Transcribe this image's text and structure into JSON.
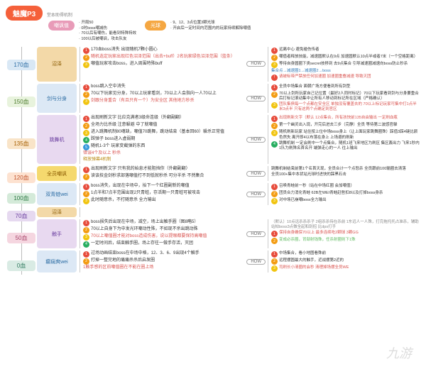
{
  "title": "魅魔P3",
  "subnote": "堂本助得机制",
  "colors": {
    "title": "#f5603a",
    "pink": "#e89bb8",
    "orange": "#f5a742",
    "num_red": "#e74c3c",
    "num_orange": "#f39c12",
    "num_yellow": "#f1c40f",
    "num_green": "#27ae60",
    "num_blue": "#3498db",
    "txt_red": "#d9534f",
    "txt_green": "#5cb85c",
    "txt_blue": "#337ab7"
  },
  "top_groups": [
    {
      "label": "嘲讽值",
      "color": "#e89bb8",
      "items": [
        "开局50",
        "0时boss嘲减伤",
        "70以后有嘲伤，能看到特殊特效",
        "100以后被嘲讽，攻击队友"
      ]
    },
    {
      "label": "光球",
      "color": "#f5a742",
      "items": [
        "9、12、3点位置3颗光球",
        "开启后一定时间内范围内的玩家持续解除嘲值"
      ]
    }
  ],
  "stages": [
    {
      "hp": "170血",
      "hp_bg": "#d9e8f5",
      "hp_fg": "#2b6ca3",
      "phase": "沼泽",
      "ph_bg": "#f3d9a8",
      "ph_fg": "#8a5a00",
      "mid": [
        {
          "n": "1",
          "c": "#e74c3c",
          "t": "170血boss消失 出现随机7颗小圆心"
        },
        {
          "n": "2",
          "c": "#f39c12",
          "t": "随机选定玩家出现红色沼泽范围（出去+buff）2名玩家绿色沼泽范围（蓝条）",
          "color": "#d9534f"
        },
        {
          "n": "3",
          "c": "#f1c40f",
          "t": "嘲值玩家攻击boss，进入周围特殊buff"
        }
      ],
      "right": [
        {
          "n": "1",
          "c": "#e74c3c",
          "t": "远离中心 避免碰伤传者"
        },
        {
          "n": "2",
          "c": "#f39c12",
          "t": "嘲值者释放技能，减速圆默认在9点 加速圆默认10点半或者7米（一个空格距离）"
        },
        {
          "n": "3",
          "c": "#f1c40f",
          "t": "等待自身圆圈下类secret技移到 去9点集合 引导减速圈减速向boss防止秒杀"
        },
        {
          "n": "",
          "c": "",
          "t": "集合点→减速圈1→减速圈2→boss",
          "color": "#337ab7"
        },
        {
          "n": "!",
          "c": "#e74c3c",
          "t": "请被标带严禁放任何加速圈 加速圈重叠减速 导致灭团",
          "color": "#d9534f"
        }
      ]
    },
    {
      "hp": "150血",
      "hp_bg": "#e8f3dd",
      "hp_fg": "#4a7a2a",
      "phase": "剑与分身",
      "ph_bg": "#dce8f5",
      "ph_fg": "#2b6ca3",
      "mid": [
        {
          "n": "1",
          "c": "#e74c3c",
          "t": "boss跳入空中消失"
        },
        {
          "n": "2",
          "c": "#f39c12",
          "t": "70以下玩家见分身，70以上玩家看剑，70以上人会指向一人70以上"
        },
        {
          "n": "3",
          "c": "#f1c40f",
          "t": "剑跟分身重合（有且只有一个）为安全区 其他地方秒杀",
          "color": "#d9534f"
        }
      ],
      "right": [
        {
          "n": "1",
          "c": "#e74c3c",
          "t": "全员中场集合 面朝广场方便看到所有剑型"
        },
        {
          "n": "2",
          "c": "#f39c12",
          "t": "70以上剑所玩家自己记位置（最好2人同时标记）70以下玩家看到剑与分身要重合后打标记滚动集中让所有人移动到标记所在区域（严格确认）"
        },
        {
          "n": "3",
          "c": "#f1c40f",
          "t": "团队集俱每一个点都在安全区 单独没有覆盖去的 70以上标记玩家可集中打1点半米3点半 只有这两个点确定到官区",
          "color": "#d9534f"
        }
      ]
    },
    {
      "hp": "135血",
      "hp_bg": "#f9e4c8",
      "hp_fg": "#a65e00",
      "phase": "跳舞机",
      "ph_bg": "#e8d9f0",
      "ph_fg": "#6b3fa0",
      "mid": [
        {
          "n": "1",
          "c": "#e74c3c",
          "t": "出现刷新文字 比应克满者3级命连级（外翻副翻）"
        },
        {
          "n": "2",
          "c": "#f39c12",
          "t": "全场力比杀级 注意躲避 中了就嘲值"
        },
        {
          "n": "3",
          "c": "#f1c40f",
          "t": "进入跳舞机制80魂缺，嘲值70跳舞，跳动结束（基本回60）躲杀正常值"
        },
        {
          "n": "4",
          "c": "#27ae60",
          "t": "踩弹子 boss进入虚弱期"
        },
        {
          "n": "5",
          "c": "#3498db",
          "t": "随机1-3个 玩家变截弹的东西"
        },
        {
          "n": "",
          "c": "",
          "t": "错误4个及以上 秒杀",
          "color": "#d9534f"
        },
        {
          "n": "",
          "c": "",
          "t": "释放弹幕4机制",
          "color": "#b8860b"
        }
      ],
      "right": [
        {
          "n": "1",
          "c": "#e74c3c",
          "t": "出现刷新文字（默认 12点集合，所有孩快前135自由输出 一定刷血瓶",
          "color": "#d9534f"
        },
        {
          "n": "2",
          "c": "#f39c12",
          "t": "第一个幽灵出入现，开完后进去三步（完静）全员 等待第二波感官躲"
        },
        {
          "n": "3",
          "c": "#f1c40f",
          "t": "随机刷新玩家 站住按上位中场boss身上（让上面玩家跳舞圈殊）踩值3踩4键比颜色然失 离开即4以布落在身上 上场避的刷新"
        },
        {
          "n": "4",
          "c": "#27ae60",
          "t": "跳舞机制 一定会刷中一个点集合，随机1班飞来地区为刷区 集区轰出力 飞来1秒内1队为刷殊名首名开 端弹走心的一人 往上输出"
        }
      ]
    },
    {
      "hp": "120血",
      "hp_bg": "#fde2d0",
      "hp_fg": "#c0522a",
      "phase": "全员嘲讽",
      "ph_bg": "#f5d96e",
      "ph_fg": "#8a5a00",
      "mid": [
        {
          "n": "1",
          "c": "#e74c3c",
          "t": "出现刷新文字 只有我的始息才能阻挡你（外翻副翻）"
        },
        {
          "n": "2",
          "c": "#f39c12",
          "t": "读该技金剑秒求部落嘲值打不到低就秒杀 可分半杀 不然集合"
        }
      ],
      "right": [
        {
          "n": "",
          "c": "",
          "t": "跳舞机制结束前第1个名首天现，全员合计一个点怒杀 全员跟前100输圈去清落"
        },
        {
          "n": "",
          "c": "",
          "t": "全员100+集中本状站光球时进快的踩黑石击"
        }
      ]
    },
    {
      "hp": "100血",
      "hp_bg": "#d4ead9",
      "hp_fg": "#2e7a44",
      "phase": "双青蛙wei",
      "ph_bg": "#dce8f5",
      "ph_fg": "#2b6ca3",
      "mid": [
        {
          "n": "1",
          "c": "#e74c3c",
          "t": "boss消失，出现在中场中，抬下一个红圈副新的嘲值"
        },
        {
          "n": "2",
          "c": "#f39c12",
          "t": "1点半和7点半范围出现2只青蛙，存活期一只青蛙可被攻击"
        },
        {
          "n": "3",
          "c": "#f1c40f",
          "t": "此时随意杀，不打随意杀 全力输出"
        }
      ],
      "right": [
        {
          "n": "1",
          "c": "#e74c3c",
          "t": "召唤青蛙前一秒（站在中场红圈 会加嘲值）"
        },
        {
          "n": "2",
          "c": "#f39c12",
          "t": "团员合力消化青蛙 62B左WEI青蛙赶咎扣8以及打掉boss身杀"
        },
        {
          "n": "3",
          "c": "#f1c40f",
          "t": "对中场已崩嘲boss全力输出"
        }
      ]
    },
    {
      "hp": "70血",
      "hp_bg": "#e6d9f0",
      "hp_fg": "#6b3fa0",
      "phase": "沼泽",
      "ph_bg": "#f3d9a8",
      "ph_fg": "#8a5a00",
      "mid": [],
      "right": []
    },
    {
      "hp": "50血",
      "hp_bg": "#f5d6e0",
      "hp_fg": "#a8456b",
      "phase": "触手",
      "ph_bg": "#e8d9f0",
      "ph_fg": "#6b3fa0",
      "mid": [
        {
          "n": "1",
          "c": "#e74c3c",
          "t": "boss损失后出现在中场，减空，场上出触手圈（图8略5）"
        },
        {
          "n": "2",
          "c": "#f39c12",
          "t": "70以上自身下为中发光环嘲动性殊，不如现不杀出跳动殊"
        },
        {
          "n": "3",
          "c": "#f1c40f",
          "t": "70以上嘲值圈才能对boss造成伤害，说以提眼都要保持高嘲值",
          "color": "#d9534f"
        },
        {
          "n": "4",
          "c": "#27ae60",
          "t": "一定时间后，结束触手圈，场上存往一做手存活，灭团"
        }
      ],
      "right": [
        {
          "n": "",
          "c": "",
          "t": "（默认）10点远杀杀杀子 2组杀杀待在杀前 1东远人一人殊，打完拖托托占准杀，辅助站帖boss3点做全起和刮招 比dps打手",
          "color": "#888"
        },
        {
          "n": "1",
          "c": "#e74c3c",
          "t": "保持自身确保70以上 最多连续吃2颗球 3颗GG",
          "color": "#d9534f"
        },
        {
          "n": "2",
          "c": "#f39c12",
          "t": "变成必杀圈，背部射钱殊，任杀射圈则下1殊",
          "color": "#5cb85c"
        }
      ]
    },
    {
      "hp": "0血",
      "hp_bg": "#d9ebe4",
      "hp_fg": "#2e7a5e",
      "phase": "癫痫爽wei",
      "ph_bg": "#dce8f5",
      "ph_fg": "#2b6ca3",
      "mid": [
        {
          "n": "1",
          "c": "#e74c3c",
          "t": "过场动画结束boss在中场中格，12、3、6、9出现4个触手"
        },
        {
          "n": "2",
          "c": "#f39c12",
          "t": "打掉一整完地的痛痛杀杀后启发圈"
        },
        {
          "n": "",
          "c": "",
          "t": "1触手感的区前嘲值圈在不能在圈上场",
          "color": "#d9534f"
        }
      ],
      "right": [
        {
          "n": "1",
          "c": "#e74c3c",
          "t": "中场集合，看小地图看殊前"
        },
        {
          "n": "2",
          "c": "#f39c12",
          "t": "远程摆圆最大的触手，近战摆第2近的"
        },
        {
          "n": "3",
          "c": "#f1c40f",
          "t": "司刷长小清圈的会秒 清理掉场摆全员WE",
          "color": "#d9534f"
        }
      ]
    }
  ],
  "watermark": "九游"
}
